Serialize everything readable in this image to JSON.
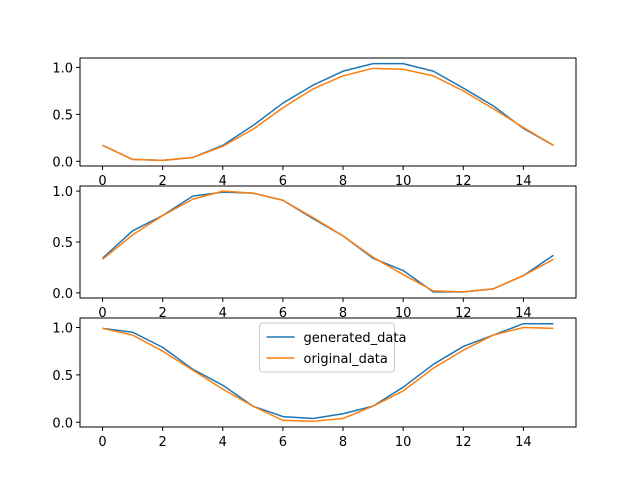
{
  "chart_data": [
    {
      "type": "line",
      "x": [
        0,
        1,
        2,
        3,
        4,
        5,
        6,
        7,
        8,
        9,
        10,
        11,
        12,
        13,
        14,
        15
      ],
      "xlim": [
        -0.75,
        15.75
      ],
      "ylim": [
        -0.05,
        1.1
      ],
      "xticks": [
        0,
        2,
        4,
        6,
        8,
        10,
        12,
        14
      ],
      "yticks": [
        0.0,
        0.5,
        1.0
      ],
      "ytick_labels": [
        "0.0",
        "0.5",
        "1.0"
      ],
      "grid": false,
      "series": [
        {
          "name": "generated_data",
          "color": "#1f77b4",
          "values": [
            0.17,
            0.02,
            0.01,
            0.04,
            0.17,
            0.38,
            0.62,
            0.81,
            0.96,
            1.04,
            1.04,
            0.96,
            0.78,
            0.59,
            0.35,
            0.17
          ]
        },
        {
          "name": "original_data",
          "color": "#ff7f0e",
          "values": [
            0.17,
            0.02,
            0.01,
            0.04,
            0.16,
            0.34,
            0.57,
            0.77,
            0.91,
            0.99,
            0.98,
            0.91,
            0.75,
            0.56,
            0.36,
            0.17
          ]
        }
      ]
    },
    {
      "type": "line",
      "x": [
        0,
        1,
        2,
        3,
        4,
        5,
        6,
        7,
        8,
        9,
        10,
        11,
        12,
        13,
        14,
        15
      ],
      "xlim": [
        -0.75,
        15.75
      ],
      "ylim": [
        -0.05,
        1.05
      ],
      "xticks": [
        0,
        2,
        4,
        6,
        8,
        10,
        12,
        14
      ],
      "yticks": [
        0.0,
        0.5,
        1.0
      ],
      "ytick_labels": [
        "0.0",
        "0.5",
        "1.0"
      ],
      "grid": false,
      "series": [
        {
          "name": "generated_data",
          "color": "#1f77b4",
          "values": [
            0.34,
            0.61,
            0.76,
            0.95,
            0.99,
            0.98,
            0.91,
            0.73,
            0.56,
            0.34,
            0.22,
            0.01,
            0.01,
            0.04,
            0.17,
            0.37
          ]
        },
        {
          "name": "original_data",
          "color": "#ff7f0e",
          "values": [
            0.33,
            0.57,
            0.76,
            0.92,
            1.0,
            0.98,
            0.91,
            0.74,
            0.56,
            0.35,
            0.18,
            0.02,
            0.01,
            0.04,
            0.17,
            0.33
          ]
        }
      ]
    },
    {
      "type": "line",
      "x": [
        0,
        1,
        2,
        3,
        4,
        5,
        6,
        7,
        8,
        9,
        10,
        11,
        12,
        13,
        14,
        15
      ],
      "xlim": [
        -0.75,
        15.75
      ],
      "ylim": [
        -0.05,
        1.1
      ],
      "xticks": [
        0,
        2,
        4,
        6,
        8,
        10,
        12,
        14
      ],
      "yticks": [
        0.0,
        0.5,
        1.0
      ],
      "ytick_labels": [
        "0.0",
        "0.5",
        "1.0"
      ],
      "grid": false,
      "legend": "upper center",
      "series": [
        {
          "name": "generated_data",
          "color": "#1f77b4",
          "values": [
            0.99,
            0.95,
            0.79,
            0.56,
            0.39,
            0.17,
            0.06,
            0.04,
            0.09,
            0.17,
            0.37,
            0.61,
            0.8,
            0.92,
            1.04,
            1.04
          ]
        },
        {
          "name": "original_data",
          "color": "#ff7f0e",
          "values": [
            0.99,
            0.92,
            0.75,
            0.55,
            0.35,
            0.17,
            0.02,
            0.01,
            0.04,
            0.17,
            0.33,
            0.57,
            0.76,
            0.92,
            1.0,
            0.99
          ]
        }
      ]
    }
  ]
}
